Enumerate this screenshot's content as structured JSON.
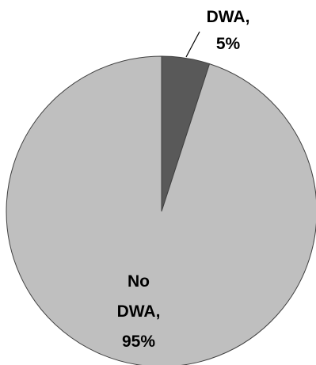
{
  "chart_data": {
    "type": "pie",
    "slices": [
      {
        "label_lines": [
          "DWA,",
          "5%"
        ],
        "category": "DWA",
        "value": 5,
        "color": "#595959"
      },
      {
        "label_lines": [
          "No",
          "DWA,",
          "95%"
        ],
        "category": "No DWA",
        "value": 95,
        "color": "#bfbfbf"
      }
    ],
    "border_color": "#404040",
    "start_angle_deg": 0,
    "direction": "clockwise"
  }
}
